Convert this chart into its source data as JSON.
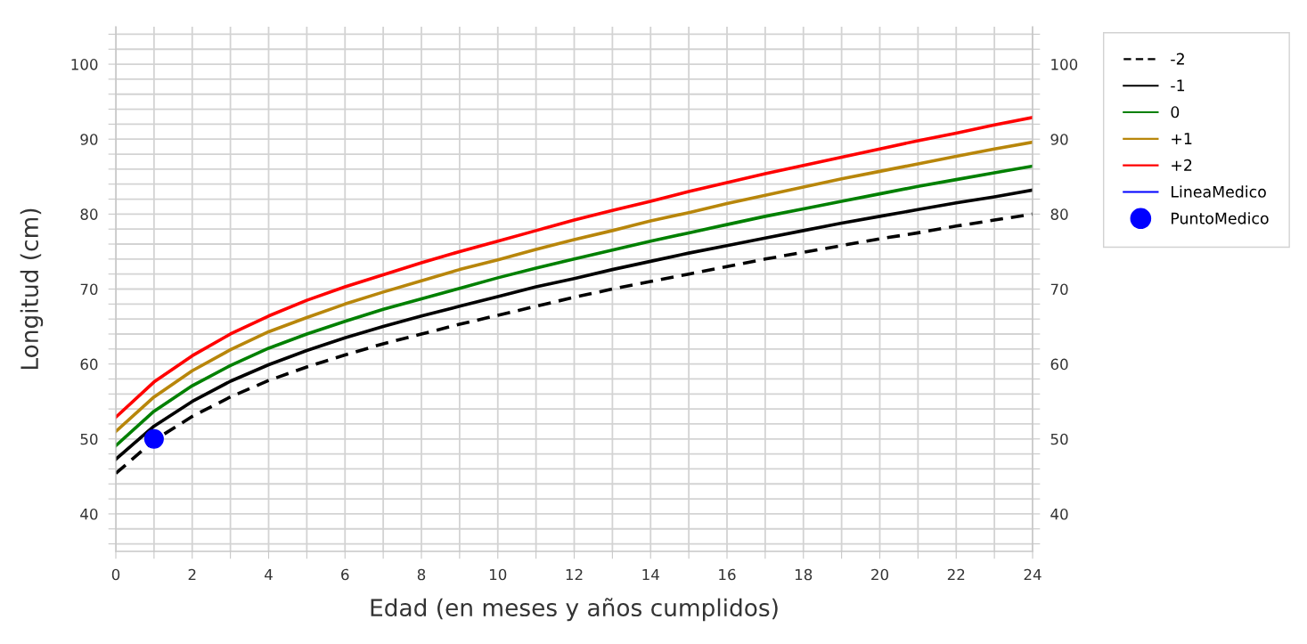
{
  "chart_data": {
    "type": "line",
    "xlabel": "Edad (en meses y años cumplidos)",
    "ylabel": "Longitud (cm)",
    "x": [
      0,
      1,
      2,
      3,
      4,
      5,
      6,
      7,
      8,
      9,
      10,
      11,
      12,
      13,
      14,
      15,
      16,
      17,
      18,
      19,
      20,
      21,
      22,
      23,
      24
    ],
    "xlim": [
      0,
      24
    ],
    "xticks": [
      0,
      {
        "value": 1,
        "label": null
      },
      2,
      {
        "value": 3,
        "label": null
      },
      4,
      {
        "value": 5,
        "label": null
      },
      6,
      {
        "value": 7,
        "label": null
      },
      8,
      {
        "value": 9,
        "label": null
      },
      10,
      {
        "value": 11,
        "label": null
      },
      12,
      {
        "value": 13,
        "label": null
      },
      14,
      {
        "value": 15,
        "label": null
      },
      16,
      {
        "value": 17,
        "label": null
      },
      18,
      {
        "value": 19,
        "label": null
      },
      20,
      {
        "value": 21,
        "label": null
      },
      22,
      {
        "value": 23,
        "label": null
      },
      24
    ],
    "ylim": [
      35,
      105
    ],
    "yticks": [
      {
        "value": 36,
        "label": null
      },
      {
        "value": 38,
        "label": null
      },
      40,
      {
        "value": 42,
        "label": null
      },
      {
        "value": 44,
        "label": null
      },
      {
        "value": 46,
        "label": null
      },
      {
        "value": 48,
        "label": null
      },
      50,
      {
        "value": 52,
        "label": null
      },
      {
        "value": 54,
        "label": null
      },
      {
        "value": 56,
        "label": null
      },
      {
        "value": 58,
        "label": null
      },
      60,
      {
        "value": 62,
        "label": null
      },
      {
        "value": 64,
        "label": null
      },
      {
        "value": 66,
        "label": null
      },
      {
        "value": 68,
        "label": null
      },
      70,
      {
        "value": 72,
        "label": null
      },
      {
        "value": 74,
        "label": null
      },
      {
        "value": 76,
        "label": null
      },
      {
        "value": 78,
        "label": null
      },
      80,
      {
        "value": 82,
        "label": null
      },
      {
        "value": 84,
        "label": null
      },
      {
        "value": 86,
        "label": null
      },
      {
        "value": 88,
        "label": null
      },
      90,
      {
        "value": 92,
        "label": null
      },
      {
        "value": 94,
        "label": null
      },
      {
        "value": 96,
        "label": null
      },
      {
        "value": 98,
        "label": null
      },
      100,
      {
        "value": 102,
        "label": null
      },
      {
        "value": 104,
        "label": null
      }
    ],
    "y2lim": [
      35,
      105
    ],
    "y2ticks": [
      {
        "value": 36,
        "label": null
      },
      {
        "value": 38,
        "label": null
      },
      40,
      {
        "value": 42,
        "label": null
      },
      {
        "value": 44,
        "label": null
      },
      {
        "value": 46,
        "label": null
      },
      {
        "value": 48,
        "label": null
      },
      50,
      {
        "value": 52,
        "label": null
      },
      {
        "value": 54,
        "label": null
      },
      {
        "value": 56,
        "label": null
      },
      {
        "value": 58,
        "label": null
      },
      60,
      {
        "value": 62,
        "label": null
      },
      {
        "value": 64,
        "label": null
      },
      {
        "value": 66,
        "label": null
      },
      {
        "value": 68,
        "label": null
      },
      70,
      {
        "value": 72,
        "label": null
      },
      {
        "value": 74,
        "label": null
      },
      {
        "value": 76,
        "label": null
      },
      {
        "value": 78,
        "label": null
      },
      80,
      {
        "value": 82,
        "label": null
      },
      {
        "value": 84,
        "label": null
      },
      {
        "value": 86,
        "label": null
      },
      {
        "value": 88,
        "label": null
      },
      90,
      {
        "value": 92,
        "label": null
      },
      {
        "value": 94,
        "label": null
      },
      {
        "value": 96,
        "label": null
      },
      {
        "value": 98,
        "label": null
      },
      100,
      {
        "value": 102,
        "label": null
      },
      {
        "value": 104,
        "label": null
      }
    ],
    "grid": true,
    "legend": "right",
    "series": [
      {
        "name": "-2",
        "color": "#000000",
        "line_style": "dashed",
        "values": [
          45.4,
          49.8,
          53.0,
          55.6,
          57.8,
          59.6,
          61.2,
          62.7,
          64.0,
          65.3,
          66.5,
          67.7,
          68.9,
          70.0,
          71.0,
          72.0,
          73.0,
          74.0,
          74.9,
          75.8,
          76.7,
          77.5,
          78.4,
          79.2,
          80.0
        ]
      },
      {
        "name": "-1",
        "color": "#000000",
        "line_style": "solid",
        "values": [
          47.3,
          51.7,
          55.0,
          57.7,
          59.9,
          61.8,
          63.5,
          65.0,
          66.4,
          67.7,
          69.0,
          70.3,
          71.4,
          72.6,
          73.7,
          74.8,
          75.8,
          76.8,
          77.8,
          78.8,
          79.7,
          80.6,
          81.5,
          82.3,
          83.2
        ]
      },
      {
        "name": "0",
        "color": "#008000",
        "line_style": "solid",
        "values": [
          49.1,
          53.7,
          57.1,
          59.8,
          62.1,
          64.0,
          65.7,
          67.3,
          68.7,
          70.1,
          71.5,
          72.8,
          74.0,
          75.2,
          76.4,
          77.5,
          78.6,
          79.7,
          80.7,
          81.7,
          82.7,
          83.7,
          84.6,
          85.5,
          86.4
        ]
      },
      {
        "name": "+1",
        "color": "#b8860b",
        "line_style": "solid",
        "values": [
          51.0,
          55.6,
          59.1,
          61.9,
          64.3,
          66.2,
          68.0,
          69.6,
          71.1,
          72.6,
          73.9,
          75.3,
          76.6,
          77.8,
          79.1,
          80.2,
          81.4,
          82.5,
          83.6,
          84.7,
          85.7,
          86.7,
          87.7,
          88.7,
          89.6
        ]
      },
      {
        "name": "+2",
        "color": "#ff0000",
        "line_style": "solid",
        "values": [
          52.9,
          57.6,
          61.1,
          64.0,
          66.4,
          68.5,
          70.3,
          71.9,
          73.5,
          75.0,
          76.4,
          77.8,
          79.2,
          80.5,
          81.7,
          83.0,
          84.2,
          85.4,
          86.5,
          87.6,
          88.7,
          89.8,
          90.8,
          91.9,
          92.9
        ]
      },
      {
        "name": "LineaMedico",
        "color": "#0000ff",
        "line_style": "solid",
        "values": [
          null,
          null,
          null,
          null,
          null,
          null,
          null,
          null,
          null,
          null,
          null,
          null,
          null,
          null,
          null,
          null,
          null,
          null,
          null,
          null,
          null,
          null,
          null,
          null,
          null
        ]
      },
      {
        "name": "PuntoMedico",
        "type": "scatter",
        "color": "#0000ff",
        "marker": "circle",
        "x": [
          1
        ],
        "values": [
          50
        ]
      }
    ]
  }
}
